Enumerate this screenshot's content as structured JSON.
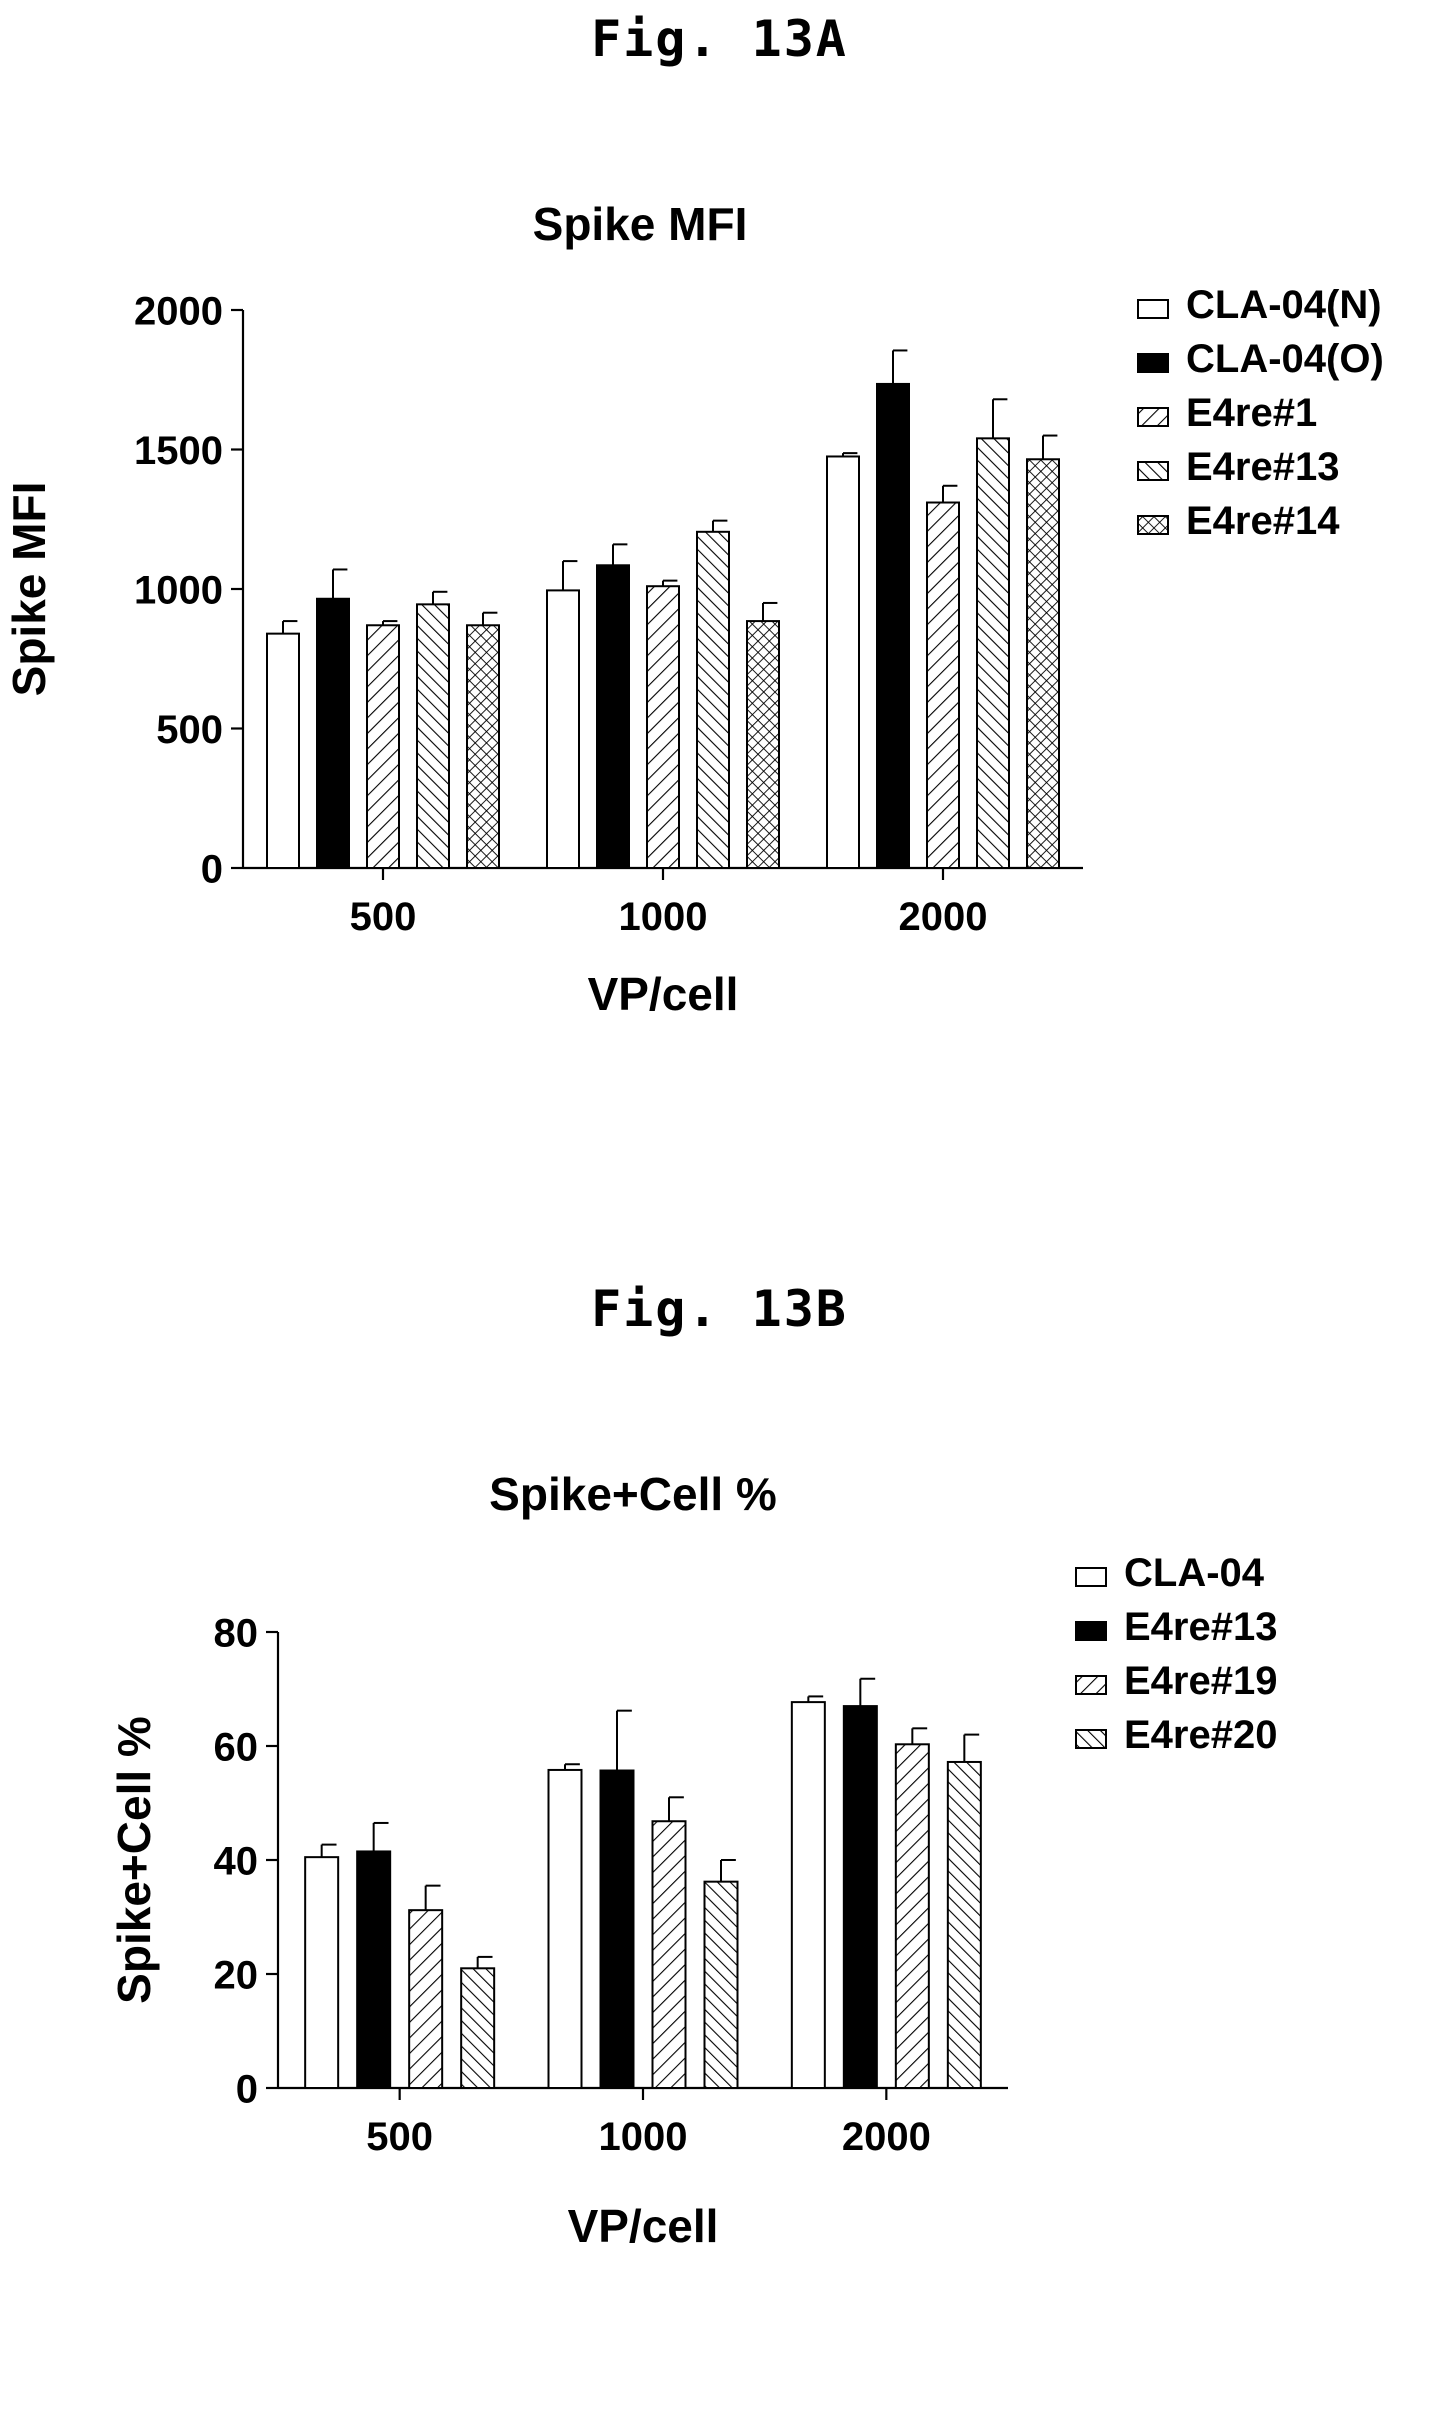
{
  "figures": [
    {
      "label": "Fig. 13A"
    },
    {
      "label": "Fig. 13B"
    }
  ],
  "chart_data": [
    {
      "type": "bar",
      "title": "Spike MFI",
      "xlabel": "VP/cell",
      "ylabel": "Spike MFI",
      "ylim": [
        0,
        2000
      ],
      "yticks": [
        "0",
        "500",
        "1000",
        "1500",
        "2000"
      ],
      "categories": [
        "500",
        "1000",
        "2000"
      ],
      "legend_position": "right",
      "series": [
        {
          "name": "CLA-04(N)",
          "pattern": "empty",
          "values": [
            840,
            995,
            1475
          ],
          "errors": [
            45,
            105,
            12
          ]
        },
        {
          "name": "CLA-04(O)",
          "pattern": "solid",
          "values": [
            965,
            1085,
            1735
          ],
          "errors": [
            105,
            75,
            120
          ]
        },
        {
          "name": "E4re#1",
          "pattern": "diag-right",
          "values": [
            870,
            1010,
            1310
          ],
          "errors": [
            15,
            20,
            60
          ]
        },
        {
          "name": "E4re#13",
          "pattern": "diag-left",
          "values": [
            945,
            1205,
            1540
          ],
          "errors": [
            45,
            40,
            140
          ]
        },
        {
          "name": "E4re#14",
          "pattern": "cross",
          "values": [
            870,
            885,
            1465
          ],
          "errors": [
            45,
            65,
            85
          ]
        }
      ]
    },
    {
      "type": "bar",
      "title": "Spike+Cell %",
      "xlabel": "VP/cell",
      "ylabel": "Spike+Cell %",
      "ylim": [
        0,
        80
      ],
      "yticks": [
        "0",
        "20",
        "40",
        "60",
        "80"
      ],
      "categories": [
        "500",
        "1000",
        "2000"
      ],
      "legend_position": "right",
      "series": [
        {
          "name": "CLA-04",
          "pattern": "empty",
          "values": [
            40.5,
            55.8,
            67.7
          ],
          "errors": [
            2.2,
            1.0,
            1.0
          ]
        },
        {
          "name": "E4re#13",
          "pattern": "solid",
          "values": [
            41.5,
            55.7,
            67.0
          ],
          "errors": [
            5.0,
            10.5,
            4.8
          ]
        },
        {
          "name": "E4re#19",
          "pattern": "diag-right",
          "values": [
            31.2,
            46.8,
            60.3
          ],
          "errors": [
            4.3,
            4.2,
            2.8
          ]
        },
        {
          "name": "E4re#20",
          "pattern": "diag-left",
          "values": [
            21.0,
            36.2,
            57.2
          ],
          "errors": [
            2.0,
            3.8,
            4.8
          ]
        }
      ]
    }
  ]
}
